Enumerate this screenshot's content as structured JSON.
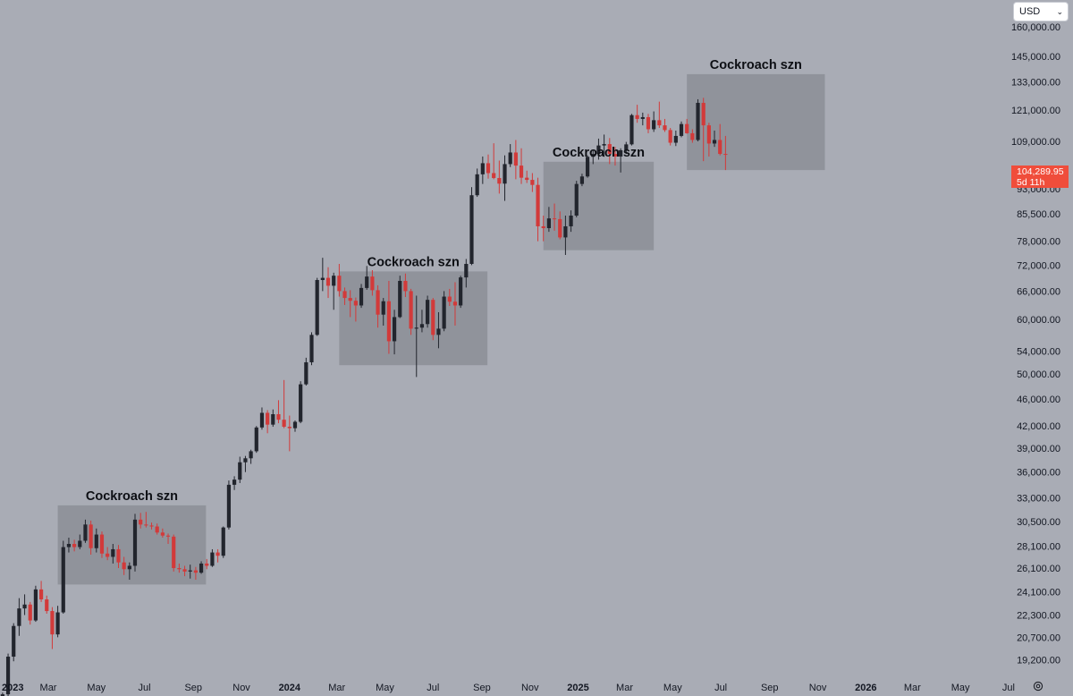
{
  "header": {
    "currency_label": "USD",
    "currency_icon": "chevron-down-icon"
  },
  "price_tag": {
    "price": "104,289.95",
    "countdown": "5d 11h"
  },
  "footer": {
    "settings_icon": "gear-icon"
  },
  "colors": {
    "background": "#a9acb5",
    "up_candle": "#22252d",
    "down_candle": "#d23a3a",
    "highlight_box": "#8a8d95",
    "price_tag": "#f04d3b"
  },
  "chart_data": {
    "type": "candlestick",
    "title": "",
    "xlabel": "",
    "ylabel": "",
    "scale": "log",
    "currency": "USD",
    "ylim": [
      18000,
      175000
    ],
    "xlim": [
      "2023-01-01",
      "2026-08-20"
    ],
    "y_ticks": [
      "19,200.00",
      "20,700.00",
      "22,300.00",
      "24,100.00",
      "26,100.00",
      "28,100.00",
      "30,500.00",
      "33,000.00",
      "36,000.00",
      "39,000.00",
      "42,000.00",
      "46,000.00",
      "50,000.00",
      "54,000.00",
      "60,000.00",
      "66,000.00",
      "72,000.00",
      "78,000.00",
      "85,500.00",
      "93,000.00",
      "109,000.00",
      "121,000.00",
      "133,000.00",
      "145,000.00",
      "160,000.00"
    ],
    "x_ticks": [
      {
        "label": "2023",
        "date": "2023-01-01",
        "bold": true
      },
      {
        "label": "Mar",
        "date": "2023-03-01"
      },
      {
        "label": "May",
        "date": "2023-05-01"
      },
      {
        "label": "Jul",
        "date": "2023-07-01"
      },
      {
        "label": "Sep",
        "date": "2023-09-01"
      },
      {
        "label": "Nov",
        "date": "2023-11-01"
      },
      {
        "label": "2024",
        "date": "2024-01-01",
        "bold": true
      },
      {
        "label": "Mar",
        "date": "2024-03-01"
      },
      {
        "label": "May",
        "date": "2024-05-01"
      },
      {
        "label": "Jul",
        "date": "2024-07-01"
      },
      {
        "label": "Sep",
        "date": "2024-09-01"
      },
      {
        "label": "Nov",
        "date": "2024-11-01"
      },
      {
        "label": "2025",
        "date": "2025-01-01",
        "bold": true
      },
      {
        "label": "Mar",
        "date": "2025-03-01"
      },
      {
        "label": "May",
        "date": "2025-05-01"
      },
      {
        "label": "Jul",
        "date": "2025-07-01"
      },
      {
        "label": "Sep",
        "date": "2025-09-01"
      },
      {
        "label": "Nov",
        "date": "2025-11-01"
      },
      {
        "label": "2026",
        "date": "2026-01-01",
        "bold": true
      },
      {
        "label": "Mar",
        "date": "2026-03-01"
      },
      {
        "label": "May",
        "date": "2026-05-01"
      },
      {
        "label": "Jul",
        "date": "2026-07-01"
      }
    ],
    "candle_interval": "week",
    "candles": {
      "columns": [
        "open",
        "high",
        "low",
        "close"
      ],
      "rows": [
        [
          16600,
          17200,
          16400,
          17100
        ],
        [
          17100,
          19600,
          17000,
          19400
        ],
        [
          19400,
          21700,
          19100,
          21500
        ],
        [
          21500,
          23600,
          20800,
          22800
        ],
        [
          22800,
          23900,
          22300,
          23100
        ],
        [
          23100,
          23300,
          21600,
          21900
        ],
        [
          21900,
          24600,
          21800,
          24300
        ],
        [
          24300,
          25000,
          23300,
          23500
        ],
        [
          23500,
          23800,
          22400,
          22600
        ],
        [
          22600,
          22900,
          19900,
          20900
        ],
        [
          20900,
          23000,
          20700,
          22500
        ],
        [
          22500,
          28600,
          22400,
          28000
        ],
        [
          28000,
          28900,
          27500,
          28300
        ],
        [
          28300,
          28700,
          27600,
          28000
        ],
        [
          28000,
          29200,
          27800,
          28600
        ],
        [
          28600,
          30700,
          28400,
          30200
        ],
        [
          30200,
          30600,
          27300,
          27900
        ],
        [
          27900,
          29800,
          27500,
          29200
        ],
        [
          29200,
          29500,
          27000,
          27400
        ],
        [
          27400,
          28000,
          26800,
          27100
        ],
        [
          27100,
          28300,
          26500,
          27800
        ],
        [
          27800,
          28200,
          26100,
          26600
        ],
        [
          26600,
          27100,
          25500,
          26000
        ],
        [
          26000,
          26600,
          25100,
          26300
        ],
        [
          26300,
          31300,
          25800,
          30700
        ],
        [
          30700,
          31400,
          29800,
          30200
        ],
        [
          30200,
          31500,
          29900,
          30100
        ],
        [
          30100,
          30400,
          29700,
          30000
        ],
        [
          30000,
          30300,
          29200,
          29400
        ],
        [
          29400,
          29800,
          28900,
          29100
        ],
        [
          29100,
          29300,
          28300,
          29000
        ],
        [
          29000,
          29200,
          25800,
          26100
        ],
        [
          26100,
          26500,
          25700,
          26000
        ],
        [
          26000,
          26300,
          25400,
          25800
        ],
        [
          25800,
          26400,
          25200,
          25900
        ],
        [
          25900,
          26200,
          25100,
          25700
        ],
        [
          25700,
          26700,
          25600,
          26500
        ],
        [
          26500,
          26900,
          26000,
          26300
        ],
        [
          26300,
          27800,
          26200,
          27500
        ],
        [
          27500,
          27800,
          26600,
          27200
        ],
        [
          27200,
          30000,
          27000,
          29900
        ],
        [
          29900,
          35000,
          29700,
          34500
        ],
        [
          34500,
          35500,
          33900,
          35100
        ],
        [
          35100,
          37900,
          34700,
          37200
        ],
        [
          37200,
          38000,
          36000,
          37700
        ],
        [
          37700,
          38800,
          37000,
          38600
        ],
        [
          38600,
          42000,
          38400,
          41800
        ],
        [
          41800,
          44700,
          41500,
          43900
        ],
        [
          43900,
          44300,
          41000,
          42200
        ],
        [
          42200,
          44400,
          41900,
          43700
        ],
        [
          43700,
          45800,
          42400,
          42900
        ],
        [
          42900,
          49000,
          41700,
          41900
        ],
        [
          41900,
          43500,
          38600,
          41700
        ],
        [
          41700,
          42800,
          41200,
          42600
        ],
        [
          42600,
          48800,
          42400,
          48300
        ],
        [
          48300,
          52800,
          48100,
          52000
        ],
        [
          52000,
          57500,
          51500,
          57000
        ],
        [
          57000,
          69000,
          56800,
          68500
        ],
        [
          68500,
          73800,
          66000,
          69000
        ],
        [
          69000,
          71500,
          64500,
          67200
        ],
        [
          67200,
          70200,
          62000,
          69500
        ],
        [
          69500,
          72300,
          64800,
          66000
        ],
        [
          66000,
          66800,
          63000,
          64500
        ],
        [
          64500,
          66200,
          60500,
          63900
        ],
        [
          63900,
          64600,
          59600,
          62900
        ],
        [
          62900,
          67600,
          62400,
          66700
        ],
        [
          66700,
          71800,
          66300,
          69300
        ],
        [
          69300,
          70800,
          65000,
          66200
        ],
        [
          66200,
          67300,
          58400,
          61000
        ],
        [
          61000,
          64500,
          58800,
          63800
        ],
        [
          63800,
          68300,
          53500,
          55800
        ],
        [
          55800,
          62000,
          53400,
          60500
        ],
        [
          60500,
          69500,
          60300,
          68300
        ],
        [
          68300,
          70000,
          64700,
          66000
        ],
        [
          66000,
          66500,
          57000,
          58200
        ],
        [
          58200,
          65000,
          49500,
          58400
        ],
        [
          58400,
          62000,
          57500,
          59100
        ],
        [
          59100,
          65000,
          58400,
          64100
        ],
        [
          64100,
          64500,
          56000,
          57000
        ],
        [
          57000,
          61500,
          54500,
          58200
        ],
        [
          58200,
          66000,
          57700,
          64800
        ],
        [
          64800,
          66500,
          62800,
          63700
        ],
        [
          63700,
          68000,
          58800,
          62900
        ],
        [
          62900,
          69500,
          62400,
          69100
        ],
        [
          69100,
          73500,
          66800,
          72300
        ],
        [
          72300,
          93500,
          72000,
          91000
        ],
        [
          91000,
          99500,
          90500,
          97600
        ],
        [
          97600,
          103600,
          94500,
          101300
        ],
        [
          101300,
          104300,
          96200,
          98000
        ],
        [
          98000,
          108300,
          96000,
          96400
        ],
        [
          96400,
          102200,
          91500,
          94600
        ],
        [
          94600,
          104000,
          89300,
          101000
        ],
        [
          101000,
          108000,
          100000,
          105000
        ],
        [
          105000,
          109500,
          96000,
          100500
        ],
        [
          100500,
          106500,
          94500,
          96500
        ],
        [
          96500,
          98800,
          94800,
          95800
        ],
        [
          95800,
          98000,
          92000,
          94200
        ],
        [
          94200,
          96500,
          78000,
          82000
        ],
        [
          82000,
          85000,
          78000,
          81500
        ],
        [
          81500,
          87500,
          80500,
          84200
        ],
        [
          84200,
          88500,
          80800,
          84000
        ],
        [
          84000,
          86200,
          78500,
          79000
        ],
        [
          79000,
          85000,
          74500,
          82000
        ],
        [
          82000,
          86500,
          80500,
          85000
        ],
        [
          85000,
          95500,
          84500,
          94500
        ],
        [
          94500,
          97800,
          93800,
          96900
        ],
        [
          96900,
          104000,
          96500,
          103500
        ],
        [
          103500,
          106000,
          101000,
          104500
        ],
        [
          104500,
          110000,
          102500,
          107500
        ],
        [
          107500,
          111500,
          103500,
          108000
        ],
        [
          108000,
          110200,
          101000,
          104500
        ],
        [
          104500,
          107000,
          100500,
          103600
        ],
        [
          103600,
          106500,
          98200,
          105800
        ],
        [
          105800,
          108800,
          104500,
          107900
        ],
        [
          107900,
          119500,
          107500,
          119000
        ],
        [
          119000,
          123200,
          116000,
          117500
        ],
        [
          117500,
          120000,
          115000,
          118200
        ],
        [
          118200,
          119500,
          112000,
          113500
        ],
        [
          113500,
          120500,
          112500,
          117000
        ],
        [
          117000,
          124500,
          114000,
          115000
        ],
        [
          115000,
          117500,
          112500,
          113200
        ],
        [
          113200,
          114000,
          107500,
          108500
        ],
        [
          108500,
          113000,
          107300,
          111000
        ],
        [
          111000,
          116500,
          110500,
          115500
        ],
        [
          115500,
          117500,
          111800,
          112000
        ],
        [
          112000,
          113500,
          108500,
          109500
        ],
        [
          109500,
          125500,
          109000,
          124000
        ],
        [
          124000,
          126100,
          102000,
          115000
        ],
        [
          115000,
          116000,
          103600,
          108200
        ],
        [
          108200,
          113000,
          107000,
          109500
        ],
        [
          109500,
          115500,
          104000,
          104500
        ],
        [
          104500,
          111000,
          99000,
          104290
        ]
      ]
    },
    "annotations": [
      {
        "label": "Cockroach szn",
        "x_start": "2023-03-13",
        "x_end": "2023-09-17",
        "y_low": 24700,
        "y_high": 32200
      },
      {
        "label": "Cockroach szn",
        "x_start": "2024-03-04",
        "x_end": "2024-09-08",
        "y_low": 51500,
        "y_high": 70500
      },
      {
        "label": "Cockroach szn",
        "x_start": "2024-11-18",
        "x_end": "2025-04-07",
        "y_low": 75700,
        "y_high": 101800
      },
      {
        "label": "Cockroach szn",
        "x_start": "2025-05-19",
        "x_end": "2025-11-10",
        "y_low": 99000,
        "y_high": 136500
      }
    ],
    "last_price": 104289.95,
    "grid": false,
    "legend": "none"
  }
}
